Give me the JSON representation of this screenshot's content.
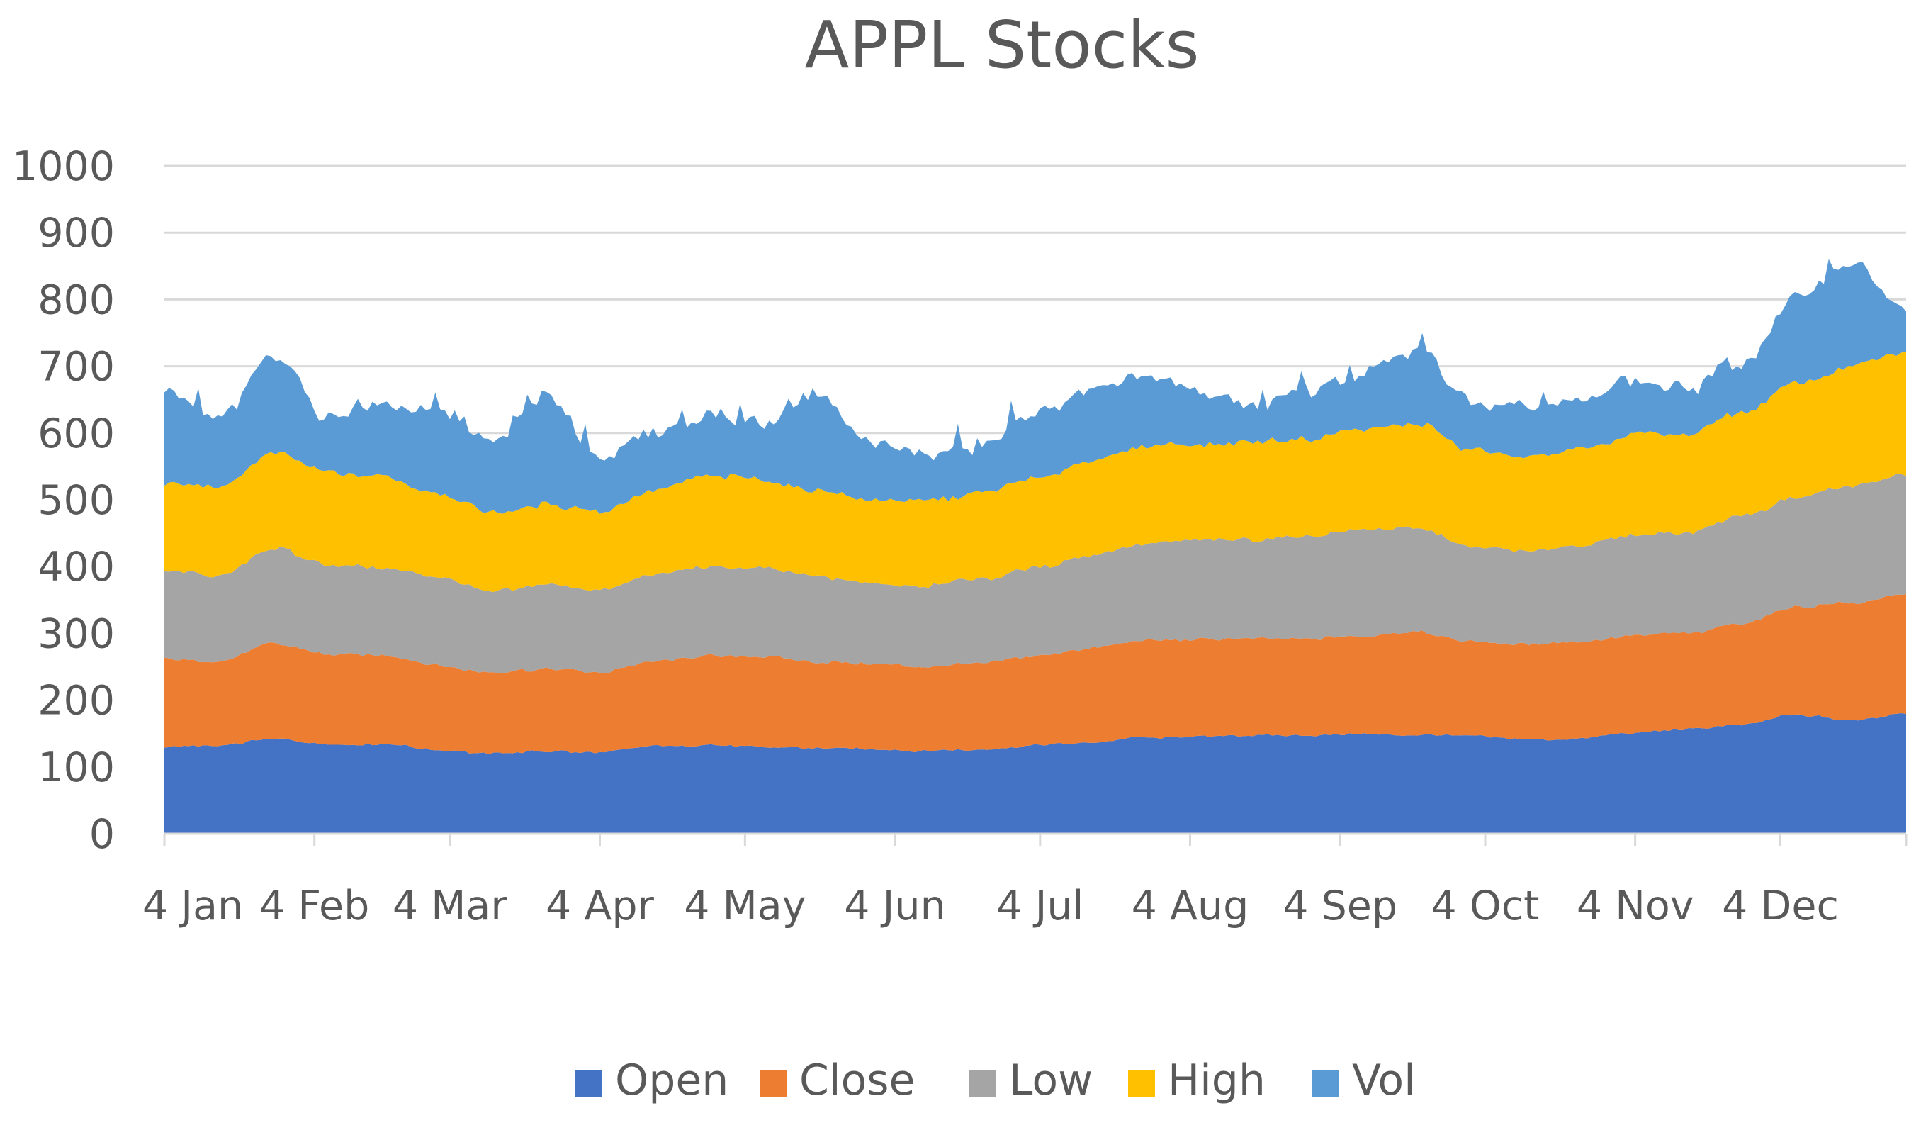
{
  "chart_data": {
    "type": "area",
    "stacked": true,
    "title": "APPL Stocks",
    "xlabel": "",
    "ylabel": "",
    "ylim": [
      0,
      1000
    ],
    "yticks": [
      0,
      100,
      200,
      300,
      400,
      500,
      600,
      700,
      800,
      900,
      1000
    ],
    "ytick_labels": [
      "0",
      "100",
      "200",
      "300",
      "400",
      "500",
      "600",
      "700",
      "800",
      "900",
      "1000"
    ],
    "grid": true,
    "legend_position": "bottom",
    "x_tick_labels": [
      "4 Jan",
      "4 Feb",
      "4 Mar",
      "4 Apr",
      "4 May",
      "4 Jun",
      "4 Jul",
      "4 Aug",
      "4 Sep",
      "4 Oct",
      "4 Nov",
      "4 Dec"
    ],
    "x_tick_indices": [
      0,
      31,
      59,
      90,
      120,
      151,
      181,
      212,
      243,
      273,
      304,
      334
    ],
    "n_points": 361,
    "series": [
      {
        "name": "Open",
        "color": "#4472C4",
        "stacked_top": [
          130,
          131,
          142,
          134,
          134,
          126,
          120,
          124,
          121,
          131,
          133,
          130,
          128,
          126,
          124,
          126,
          132,
          137,
          144,
          146,
          148,
          147,
          150,
          148,
          146,
          141,
          143,
          151,
          157,
          163,
          178,
          170,
          180
        ]
      },
      {
        "name": "Close",
        "color": "#ED7D31",
        "stacked_top": [
          262,
          258,
          285,
          269,
          266,
          253,
          241,
          247,
          242,
          257,
          266,
          265,
          257,
          253,
          251,
          255,
          265,
          277,
          290,
          291,
          293,
          292,
          295,
          303,
          287,
          283,
          287,
          297,
          300,
          315,
          340,
          345,
          358
        ]
      },
      {
        "name": "Low",
        "color": "#A5A5A5",
        "stacked_top": [
          393,
          387,
          428,
          403,
          399,
          385,
          362,
          372,
          363,
          387,
          400,
          397,
          385,
          375,
          372,
          381,
          398,
          417,
          434,
          438,
          441,
          444,
          455,
          458,
          430,
          422,
          431,
          448,
          452,
          476,
          505,
          520,
          537
        ]
      },
      {
        "name": "High",
        "color": "#FFC000",
        "stacked_top": [
          525,
          518,
          570,
          540,
          535,
          510,
          480,
          493,
          483,
          514,
          535,
          530,
          514,
          500,
          498,
          510,
          530,
          558,
          580,
          584,
          588,
          590,
          605,
          615,
          575,
          563,
          575,
          597,
          600,
          633,
          675,
          700,
          718
        ]
      },
      {
        "name": "Vol",
        "color": "#5B9BD5",
        "stacked_top": [
          660,
          620,
          720,
          625,
          640,
          635,
          590,
          655,
          565,
          600,
          625,
          615,
          655,
          580,
          565,
          580,
          625,
          660,
          685,
          660,
          640,
          665,
          690,
          725,
          650,
          640,
          650,
          680,
          665,
          710,
          800,
          860,
          780
        ]
      }
    ]
  }
}
